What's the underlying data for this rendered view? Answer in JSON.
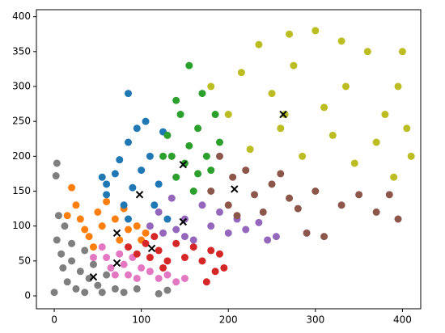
{
  "chart_data": {
    "type": "scatter",
    "xlim": [
      -20.5,
      421
    ],
    "ylim": [
      -18.5,
      410
    ],
    "xticks": [
      0,
      100,
      200,
      300,
      400
    ],
    "yticks": [
      0,
      50,
      100,
      150,
      200,
      250,
      300,
      350,
      400
    ],
    "series": [
      {
        "color": "#7f7f7f",
        "marker": "o",
        "x": [
          0,
          3,
          2,
          5,
          3,
          8,
          10,
          15,
          20,
          25,
          30,
          35,
          40,
          45,
          50,
          55,
          60,
          70,
          80,
          95,
          120,
          130,
          20,
          12,
          35
        ],
        "values": [
          5,
          190,
          172,
          115,
          80,
          60,
          40,
          20,
          50,
          10,
          35,
          5,
          25,
          45,
          15,
          5,
          30,
          10,
          5,
          10,
          3,
          8,
          75,
          100,
          65
        ]
      },
      {
        "color": "#e377c2",
        "marker": "o",
        "x": [
          55,
          60,
          65,
          70,
          75,
          80,
          85,
          90,
          100,
          110,
          120,
          130,
          45,
          140,
          150,
          95
        ],
        "values": [
          70,
          55,
          40,
          30,
          60,
          45,
          30,
          55,
          40,
          35,
          25,
          30,
          55,
          20,
          25,
          25
        ]
      },
      {
        "color": "#ff7f0e",
        "marker": "o",
        "x": [
          20,
          25,
          30,
          35,
          40,
          50,
          55,
          60,
          70,
          75,
          80,
          85,
          95,
          100,
          105,
          45,
          15
        ],
        "values": [
          155,
          130,
          110,
          95,
          85,
          120,
          100,
          135,
          110,
          80,
          125,
          95,
          100,
          80,
          90,
          70,
          115
        ]
      },
      {
        "color": "#d62728",
        "marker": "o",
        "x": [
          85,
          95,
          105,
          110,
          115,
          120,
          130,
          140,
          150,
          160,
          170,
          180,
          190,
          195,
          185,
          175,
          125
        ],
        "values": [
          70,
          60,
          75,
          55,
          85,
          65,
          50,
          75,
          55,
          70,
          50,
          65,
          60,
          40,
          35,
          20,
          40
        ]
      },
      {
        "color": "#1f77b4",
        "marker": "o",
        "x": [
          55,
          60,
          70,
          75,
          80,
          85,
          90,
          100,
          105,
          110,
          115,
          120,
          125,
          130,
          95,
          85,
          60,
          85
        ],
        "values": [
          170,
          145,
          175,
          195,
          130,
          220,
          155,
          180,
          250,
          200,
          130,
          160,
          235,
          110,
          240,
          110,
          160,
          290
        ]
      },
      {
        "color": "#2ca02c",
        "marker": "o",
        "x": [
          130,
          135,
          140,
          145,
          150,
          155,
          160,
          165,
          170,
          175,
          180,
          185,
          155,
          140,
          190,
          165,
          125
        ],
        "values": [
          230,
          200,
          170,
          260,
          190,
          215,
          150,
          240,
          290,
          200,
          180,
          260,
          330,
          280,
          220,
          175,
          200
        ]
      },
      {
        "color": "#9467bd",
        "marker": "o",
        "x": [
          110,
          120,
          125,
          135,
          140,
          150,
          160,
          170,
          180,
          190,
          200,
          210,
          220,
          235,
          245,
          255,
          150
        ],
        "values": [
          100,
          120,
          90,
          140,
          95,
          110,
          80,
          130,
          100,
          120,
          90,
          110,
          95,
          105,
          80,
          85,
          85
        ]
      },
      {
        "color": "#8c564b",
        "marker": "o",
        "x": [
          180,
          190,
          200,
          205,
          210,
          220,
          230,
          240,
          250,
          260,
          270,
          280,
          300,
          330,
          350,
          370,
          385,
          395,
          290,
          310
        ],
        "values": [
          150,
          200,
          130,
          170,
          115,
          180,
          145,
          120,
          160,
          175,
          140,
          125,
          150,
          130,
          145,
          120,
          145,
          110,
          90,
          85
        ]
      },
      {
        "color": "#bcbd22",
        "marker": "o",
        "x": [
          180,
          200,
          215,
          225,
          235,
          250,
          260,
          265,
          275,
          285,
          300,
          310,
          320,
          335,
          345,
          360,
          370,
          380,
          395,
          405,
          410,
          390,
          270,
          330,
          400
        ],
        "values": [
          300,
          260,
          320,
          210,
          360,
          290,
          240,
          260,
          330,
          200,
          380,
          270,
          230,
          300,
          190,
          350,
          220,
          260,
          300,
          240,
          200,
          170,
          375,
          365,
          350
        ]
      },
      {
        "color": "#000000",
        "marker": "x",
        "x": [
          45,
          72,
          72,
          112,
          98,
          148,
          148,
          207,
          263
        ],
        "values": [
          27,
          47,
          90,
          68,
          145,
          188,
          106,
          153,
          260
        ]
      }
    ]
  }
}
